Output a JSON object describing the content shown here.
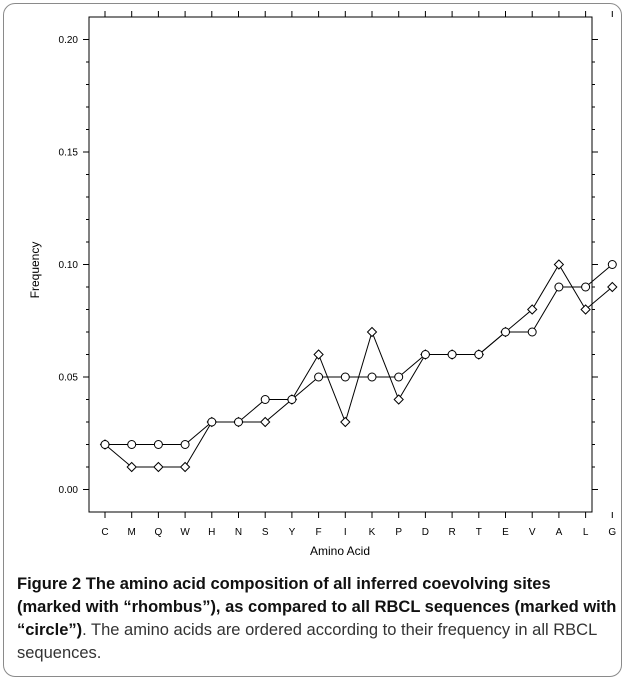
{
  "chart_data": {
    "type": "line",
    "xlabel": "Amino Acid",
    "ylabel": "Frequency",
    "ylim": [
      -0.01,
      0.21
    ],
    "yticks": [
      "0.00",
      "0.05",
      "0.10",
      "0.15",
      "0.20"
    ],
    "categories": [
      "C",
      "M",
      "Q",
      "W",
      "H",
      "N",
      "S",
      "Y",
      "F",
      "I",
      "K",
      "P",
      "D",
      "R",
      "T",
      "E",
      "V",
      "A",
      "L",
      "G"
    ],
    "series": [
      {
        "marker": "rhombus",
        "values": [
          0.02,
          0.01,
          0.01,
          0.01,
          0.03,
          0.03,
          0.03,
          0.04,
          0.06,
          0.03,
          0.07,
          0.04,
          0.06,
          0.06,
          0.06,
          0.07,
          0.08,
          0.1,
          0.08,
          0.09
        ]
      },
      {
        "marker": "circle",
        "values": [
          0.02,
          0.02,
          0.02,
          0.02,
          0.03,
          0.03,
          0.04,
          0.04,
          0.05,
          0.05,
          0.05,
          0.05,
          0.06,
          0.06,
          0.06,
          0.07,
          0.07,
          0.09,
          0.09,
          0.1
        ]
      }
    ],
    "grid": false,
    "colors": {
      "line": "#000000",
      "marker_fill": "#ffffff"
    }
  },
  "caption": {
    "label": "Figure 2",
    "bold_text": "The amino acid composition of all inferred coevolving sites (marked with “rhombus”), as compared to all RBCL sequences (marked with “circle”)",
    "rest": ". The amino acids are ordered according to their frequency in all RBCL sequences."
  }
}
